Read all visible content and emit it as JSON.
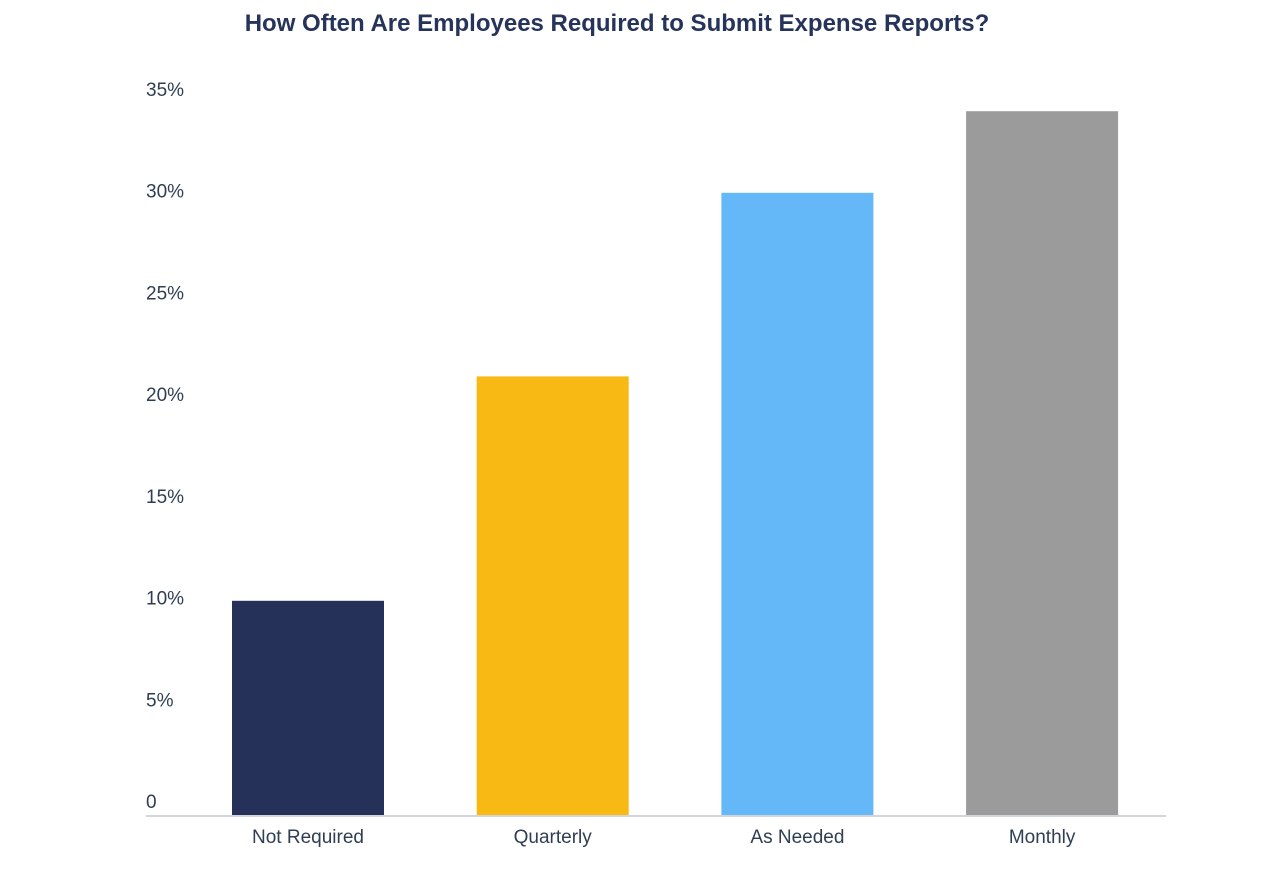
{
  "chart_data": {
    "type": "bar",
    "title": "How Often Are Employees Required to Submit Expense Reports?",
    "categories": [
      "Not Required",
      "Quarterly",
      "As Needed",
      "Monthly"
    ],
    "values": [
      10.5,
      21.5,
      30.5,
      34.5
    ],
    "colors": [
      "#263159",
      "#f9b914",
      "#64b8f8",
      "#9b9b9b"
    ],
    "ylim": [
      0,
      35
    ],
    "yticks": [
      {
        "value": 0,
        "label": "0"
      },
      {
        "value": 5,
        "label": "5%"
      },
      {
        "value": 10,
        "label": "10%"
      },
      {
        "value": 15,
        "label": "15%"
      },
      {
        "value": 20,
        "label": "20%"
      },
      {
        "value": 25,
        "label": "25%"
      },
      {
        "value": 30,
        "label": "30%"
      },
      {
        "value": 35,
        "label": "35%"
      }
    ],
    "grid": false,
    "axis_color": "#d4d4dc"
  }
}
